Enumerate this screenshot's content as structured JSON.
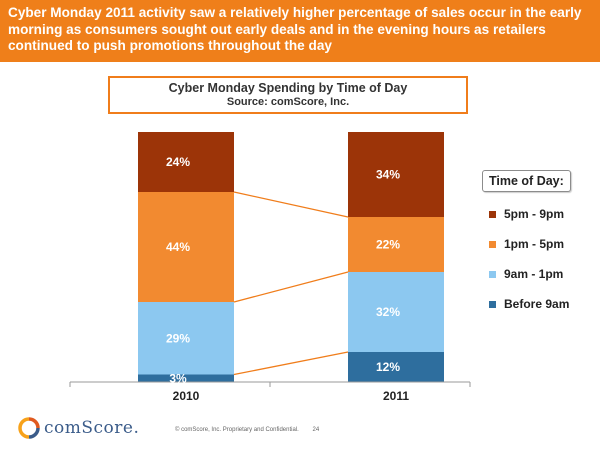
{
  "slide": {
    "headline": "Cyber Monday 2011 activity saw a relatively higher percentage of sales occur in the early morning as consumers sought out early deals and in the evening hours as retailers continued to push promotions throughout the day",
    "footer_text": "© comScore, Inc.   Proprietary and Confidential.",
    "page_number": "24",
    "logo_text": "comScore.",
    "accent_color": "#ef7f1a"
  },
  "chart_data": {
    "type": "bar",
    "stacked": true,
    "percent": true,
    "title": "Cyber Monday Spending by Time of Day",
    "subtitle": "Source: comScore, Inc.",
    "legend_title": "Time of Day:",
    "legend_position": "right",
    "categories": [
      "2010",
      "2011"
    ],
    "series": [
      {
        "name": "Before 9am",
        "values": [
          3,
          12
        ],
        "labels": [
          "3%",
          "12%"
        ],
        "color": "#2e6e9e"
      },
      {
        "name": "9am - 1pm",
        "values": [
          29,
          32
        ],
        "labels": [
          "29%",
          "32%"
        ],
        "color": "#8cc8f0"
      },
      {
        "name": "1pm - 5pm",
        "values": [
          44,
          22
        ],
        "labels": [
          "44%",
          "22%"
        ],
        "color": "#f28a30"
      },
      {
        "name": "5pm - 9pm",
        "values": [
          24,
          34
        ],
        "labels": [
          "24%",
          "34%"
        ],
        "color": "#9c3408"
      }
    ],
    "legend_order": [
      "5pm - 9pm",
      "1pm - 5pm",
      "9am - 1pm",
      "Before 9am"
    ],
    "connector_color": "#f07d1b",
    "ylim": [
      0,
      100
    ]
  }
}
